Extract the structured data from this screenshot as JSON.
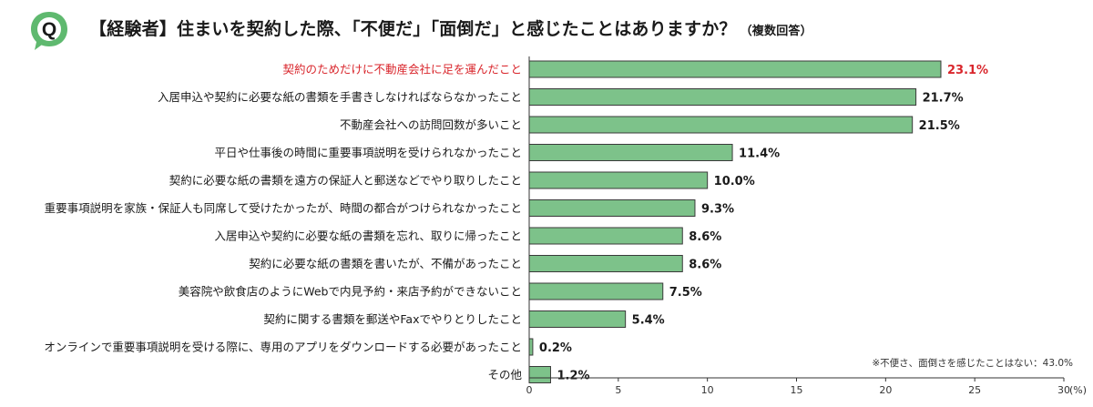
{
  "header": {
    "badge_letter": "Q",
    "title": "【経験者】住まいを契約した際、「不便だ」「面倒だ」と感じたことはありますか？",
    "note": "（複数回答）"
  },
  "colors": {
    "bar": "#7dc28a",
    "bar_stroke": "#3a3a3a",
    "highlight_text": "#d9262c",
    "badge_green": "#5fb96f"
  },
  "chart_data": {
    "type": "bar",
    "orientation": "horizontal",
    "categories": [
      "契約のためだけに不動産会社に足を運んだこと",
      "入居申込や契約に必要な紙の書類を手書きしなければならなかったこと",
      "不動産会社への訪問回数が多いこと",
      "平日や仕事後の時間に重要事項説明を受けられなかったこと",
      "契約に必要な紙の書類を遠方の保証人と郵送などでやり取りしたこと",
      "重要事項説明を家族・保証人も同席して受けたかったが、時間の都合がつけられなかったこと",
      "入居申込や契約に必要な紙の書類を忘れ、取りに帰ったこと",
      "契約に必要な紙の書類を書いたが、不備があったこと",
      "美容院や飲食店のようにWebで内見予約・来店予約ができないこと",
      "契約に関する書類を郵送やFaxでやりとりしたこと",
      "オンラインで重要事項説明を受ける際に、専用のアプリをダウンロードする必要があったこと",
      "その他"
    ],
    "values": [
      23.1,
      21.7,
      21.5,
      11.4,
      10.0,
      9.3,
      8.6,
      8.6,
      7.5,
      5.4,
      0.2,
      1.2
    ],
    "value_labels": [
      "23.1%",
      "21.7%",
      "21.5%",
      "11.4%",
      "10.0%",
      "9.3%",
      "8.6%",
      "8.6%",
      "7.5%",
      "5.4%",
      "0.2%",
      "1.2%"
    ],
    "highlight_index": 0,
    "xlim": [
      0,
      30
    ],
    "xticks": [
      "0",
      "5",
      "10",
      "15",
      "20",
      "25",
      "30"
    ],
    "x_unit": "(%)",
    "footnote": "※不便さ、面倒さを感じたことはない：43.0%",
    "grid": false
  }
}
